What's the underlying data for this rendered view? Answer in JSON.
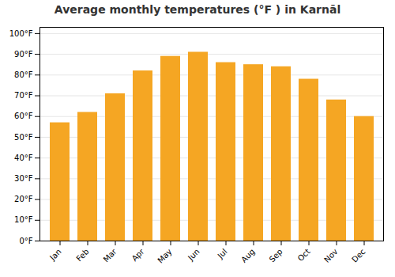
{
  "chart_data": {
    "type": "bar",
    "title": "Average monthly temperatures (°F ) in Karnāl",
    "categories": [
      "Jan",
      "Feb",
      "Mar",
      "Apr",
      "May",
      "Jun",
      "Jul",
      "Aug",
      "Sep",
      "Oct",
      "Nov",
      "Dec"
    ],
    "values": [
      57,
      62,
      71,
      82,
      89,
      91,
      86,
      85,
      84,
      78,
      68,
      60
    ],
    "color": "#F5A623",
    "ylim": [
      0,
      103
    ],
    "yticks": [
      {
        "value": 0,
        "label": "0°F"
      },
      {
        "value": 10,
        "label": "10°F"
      },
      {
        "value": 20,
        "label": "20°F"
      },
      {
        "value": 30,
        "label": "30°F"
      },
      {
        "value": 40,
        "label": "40°F"
      },
      {
        "value": 50,
        "label": "50°F"
      },
      {
        "value": 60,
        "label": "60°F"
      },
      {
        "value": 70,
        "label": "70°F"
      },
      {
        "value": 80,
        "label": "80°F"
      },
      {
        "value": 90,
        "label": "90°F"
      },
      {
        "value": 100,
        "label": "100°F"
      }
    ],
    "grid": true
  }
}
